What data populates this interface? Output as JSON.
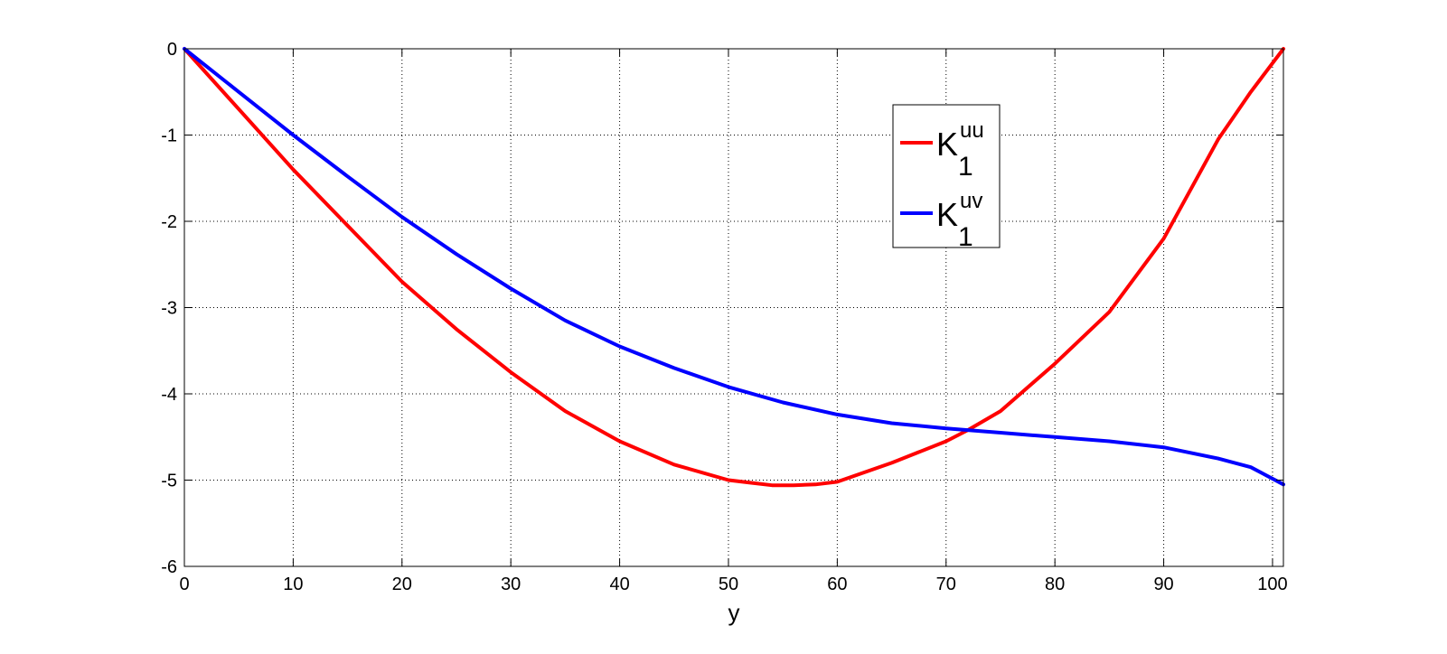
{
  "chart_data": {
    "type": "line",
    "xlabel": "y",
    "ylabel": "",
    "title": "",
    "xlim": [
      0,
      101
    ],
    "ylim": [
      -6,
      0
    ],
    "grid": true,
    "legend_position": "top-right",
    "x_ticks": [
      0,
      10,
      20,
      30,
      40,
      50,
      60,
      70,
      80,
      90,
      100
    ],
    "x_tick_labels": [
      "0",
      "10",
      "20",
      "30",
      "40",
      "50",
      "60",
      "70",
      "80",
      "90",
      "100"
    ],
    "y_ticks": [
      0,
      -1,
      -2,
      -3,
      -4,
      -5,
      -6
    ],
    "y_tick_labels": [
      "0",
      "-1",
      "-2",
      "-3",
      "-4",
      "-5",
      "-6"
    ],
    "series": [
      {
        "name": "K1uu",
        "legend_base": "K",
        "legend_sub": "1",
        "legend_sup": "uu",
        "color": "#ff0000",
        "x": [
          0,
          5,
          10,
          15,
          20,
          25,
          30,
          35,
          40,
          45,
          50,
          52,
          54,
          56,
          58,
          60,
          65,
          70,
          72,
          75,
          80,
          85,
          90,
          95,
          98,
          101
        ],
        "y": [
          0,
          -0.7,
          -1.4,
          -2.05,
          -2.7,
          -3.25,
          -3.75,
          -4.2,
          -4.55,
          -4.82,
          -5.0,
          -5.03,
          -5.06,
          -5.06,
          -5.05,
          -5.02,
          -4.8,
          -4.55,
          -4.42,
          -4.2,
          -3.65,
          -3.05,
          -2.2,
          -1.05,
          -0.5,
          0
        ]
      },
      {
        "name": "K1uv",
        "legend_base": "K",
        "legend_sub": "1",
        "legend_sup": "uv",
        "color": "#0000ff",
        "x": [
          0,
          5,
          10,
          15,
          20,
          25,
          30,
          35,
          40,
          45,
          50,
          55,
          60,
          65,
          70,
          75,
          80,
          85,
          90,
          95,
          98,
          101
        ],
        "y": [
          0,
          -0.5,
          -1.0,
          -1.48,
          -1.95,
          -2.38,
          -2.78,
          -3.15,
          -3.45,
          -3.7,
          -3.92,
          -4.1,
          -4.24,
          -4.34,
          -4.4,
          -4.45,
          -4.5,
          -4.55,
          -4.62,
          -4.75,
          -4.85,
          -5.05
        ]
      }
    ]
  }
}
